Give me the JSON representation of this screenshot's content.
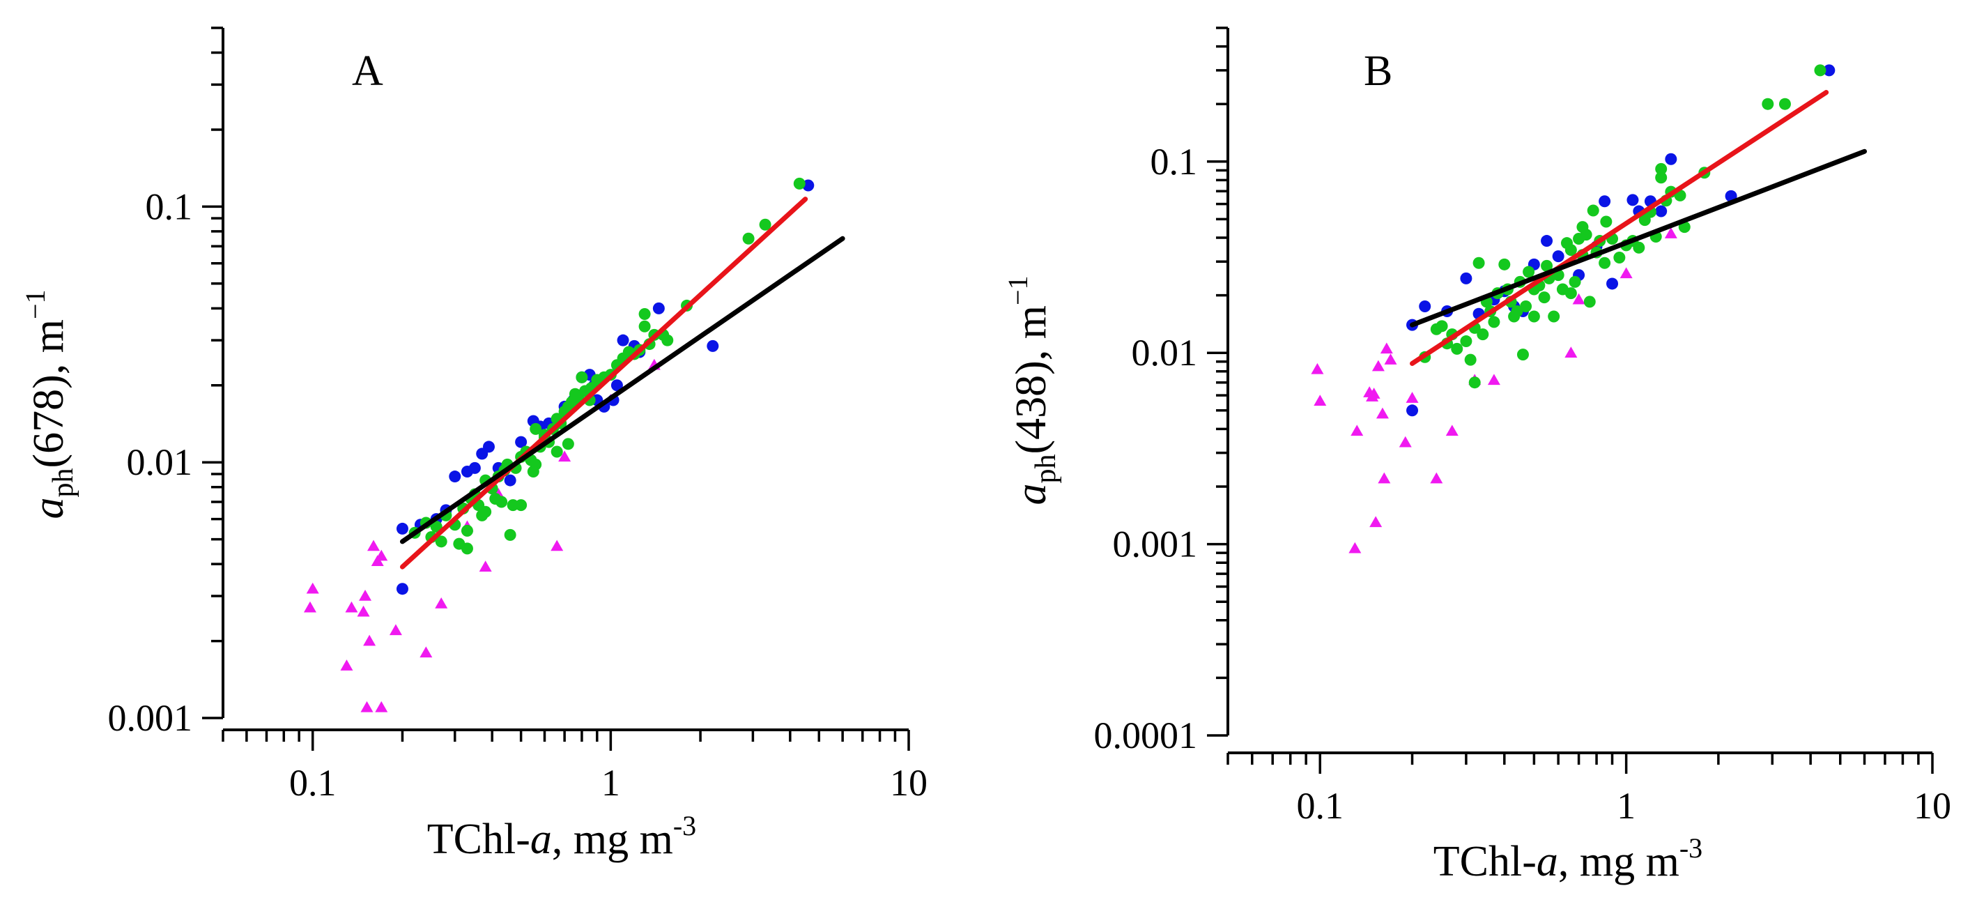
{
  "chart_data": [
    {
      "type": "scatter",
      "panel_label": "A",
      "xlabel": {
        "base": "TChl-",
        "italic": "a",
        "unit": ", mg m",
        "exp": "-3"
      },
      "ylabel": {
        "italic": "a",
        "sub": "ph",
        "rest": "(678), m",
        "exp": "−1"
      },
      "xscale": "log",
      "yscale": "log",
      "xlim": [
        0.05,
        10
      ],
      "ylim": [
        0.001,
        0.5
      ],
      "xticks": [
        {
          "v": 0.1,
          "label": "0.1"
        },
        {
          "v": 1,
          "label": "1"
        },
        {
          "v": 10,
          "label": "10"
        }
      ],
      "yticks": [
        {
          "v": 0.001,
          "label": "0.001"
        },
        {
          "v": 0.01,
          "label": "0.01"
        },
        {
          "v": 0.1,
          "label": "0.1"
        }
      ],
      "fit_lines": [
        {
          "color": "#e8141a",
          "x": [
            0.2,
            4.5
          ],
          "y": [
            0.0039,
            0.107
          ]
        },
        {
          "color": "#000000",
          "x": [
            0.2,
            6.0
          ],
          "y": [
            0.0049,
            0.075
          ]
        }
      ],
      "series": [
        {
          "marker": "circle",
          "color": "#0a14e6",
          "points": [
            [
              0.2,
              0.0055
            ],
            [
              0.2,
              0.0032
            ],
            [
              0.23,
              0.0057
            ],
            [
              0.26,
              0.006
            ],
            [
              0.28,
              0.0065
            ],
            [
              0.3,
              0.0088
            ],
            [
              0.33,
              0.0092
            ],
            [
              0.35,
              0.0095
            ],
            [
              0.37,
              0.0108
            ],
            [
              0.39,
              0.0115
            ],
            [
              0.42,
              0.0095
            ],
            [
              0.46,
              0.0085
            ],
            [
              0.5,
              0.012
            ],
            [
              0.55,
              0.0145
            ],
            [
              0.58,
              0.0138
            ],
            [
              0.62,
              0.0142
            ],
            [
              0.7,
              0.0165
            ],
            [
              0.75,
              0.0175
            ],
            [
              0.8,
              0.0215
            ],
            [
              0.85,
              0.022
            ],
            [
              0.88,
              0.02
            ],
            [
              0.9,
              0.0175
            ],
            [
              0.95,
              0.0165
            ],
            [
              1.02,
              0.0175
            ],
            [
              1.05,
              0.02
            ],
            [
              1.1,
              0.03
            ],
            [
              1.2,
              0.0285
            ],
            [
              1.25,
              0.027
            ],
            [
              1.45,
              0.04
            ],
            [
              2.2,
              0.0285
            ],
            [
              4.6,
              0.121
            ]
          ]
        },
        {
          "marker": "triangle",
          "color": "#f019f0",
          "points": [
            [
              0.1,
              0.0032
            ],
            [
              0.098,
              0.0027
            ],
            [
              0.13,
              0.0016
            ],
            [
              0.135,
              0.0027
            ],
            [
              0.148,
              0.0026
            ],
            [
              0.15,
              0.003
            ],
            [
              0.152,
              0.0011
            ],
            [
              0.155,
              0.002
            ],
            [
              0.16,
              0.0047
            ],
            [
              0.165,
              0.0041
            ],
            [
              0.17,
              0.0043
            ],
            [
              0.17,
              0.0011
            ],
            [
              0.19,
              0.0022
            ],
            [
              0.24,
              0.0018
            ],
            [
              0.27,
              0.0028
            ],
            [
              0.33,
              0.0056
            ],
            [
              0.38,
              0.0039
            ],
            [
              0.42,
              0.0075
            ],
            [
              0.66,
              0.0047
            ],
            [
              0.7,
              0.0105
            ],
            [
              1.0,
              0.0175
            ],
            [
              1.4,
              0.024
            ]
          ]
        },
        {
          "marker": "circle",
          "color": "#14c81e",
          "points": [
            [
              0.22,
              0.0053
            ],
            [
              0.24,
              0.0058
            ],
            [
              0.25,
              0.0051
            ],
            [
              0.26,
              0.0056
            ],
            [
              0.27,
              0.0049
            ],
            [
              0.28,
              0.0062
            ],
            [
              0.3,
              0.0057
            ],
            [
              0.31,
              0.0048
            ],
            [
              0.32,
              0.0066
            ],
            [
              0.33,
              0.0054
            ],
            [
              0.33,
              0.0046
            ],
            [
              0.34,
              0.0072
            ],
            [
              0.35,
              0.0075
            ],
            [
              0.36,
              0.0068
            ],
            [
              0.37,
              0.0062
            ],
            [
              0.38,
              0.0064
            ],
            [
              0.38,
              0.0085
            ],
            [
              0.4,
              0.0079
            ],
            [
              0.41,
              0.0072
            ],
            [
              0.42,
              0.0088
            ],
            [
              0.43,
              0.007
            ],
            [
              0.44,
              0.0093
            ],
            [
              0.45,
              0.0098
            ],
            [
              0.46,
              0.0052
            ],
            [
              0.47,
              0.0068
            ],
            [
              0.48,
              0.0095
            ],
            [
              0.5,
              0.0068
            ],
            [
              0.5,
              0.0105
            ],
            [
              0.52,
              0.011
            ],
            [
              0.54,
              0.0102
            ],
            [
              0.56,
              0.0098
            ],
            [
              0.58,
              0.0115
            ],
            [
              0.6,
              0.0125
            ],
            [
              0.62,
              0.012
            ],
            [
              0.64,
              0.0135
            ],
            [
              0.66,
              0.0148
            ],
            [
              0.68,
              0.0142
            ],
            [
              0.7,
              0.0158
            ],
            [
              0.72,
              0.0165
            ],
            [
              0.74,
              0.0172
            ],
            [
              0.76,
              0.0185
            ],
            [
              0.78,
              0.0178
            ],
            [
              0.8,
              0.0215
            ],
            [
              0.82,
              0.019
            ],
            [
              0.86,
              0.0195
            ],
            [
              0.9,
              0.021
            ],
            [
              0.95,
              0.0215
            ],
            [
              1.0,
              0.022
            ],
            [
              1.05,
              0.024
            ],
            [
              1.1,
              0.0255
            ],
            [
              1.15,
              0.027
            ],
            [
              1.2,
              0.0265
            ],
            [
              1.25,
              0.0275
            ],
            [
              1.3,
              0.034
            ],
            [
              1.3,
              0.038
            ],
            [
              1.35,
              0.029
            ],
            [
              1.4,
              0.0315
            ],
            [
              1.5,
              0.0315
            ],
            [
              1.55,
              0.03
            ],
            [
              1.8,
              0.041
            ],
            [
              2.9,
              0.075
            ],
            [
              3.3,
              0.085
            ],
            [
              4.3,
              0.123
            ],
            [
              0.56,
              0.0135
            ],
            [
              0.6,
              0.0128
            ],
            [
              0.66,
              0.011
            ],
            [
              0.72,
              0.0118
            ],
            [
              0.85,
              0.0175
            ],
            [
              0.55,
              0.0092
            ]
          ]
        }
      ]
    },
    {
      "type": "scatter",
      "panel_label": "B",
      "xlabel": {
        "base": "TChl-",
        "italic": "a",
        "unit": ", mg m",
        "exp": "-3"
      },
      "ylabel": {
        "italic": "a",
        "sub": "ph",
        "rest": "(438), m",
        "exp": "−1"
      },
      "xscale": "log",
      "yscale": "log",
      "xlim": [
        0.05,
        10
      ],
      "ylim": [
        0.0001,
        0.5
      ],
      "xticks": [
        {
          "v": 0.1,
          "label": "0.1"
        },
        {
          "v": 1,
          "label": "1"
        },
        {
          "v": 10,
          "label": "10"
        }
      ],
      "yticks": [
        {
          "v": 0.0001,
          "label": "0.0001"
        },
        {
          "v": 0.001,
          "label": "0.001"
        },
        {
          "v": 0.01,
          "label": "0.01"
        },
        {
          "v": 0.1,
          "label": "0.1"
        }
      ],
      "fit_lines": [
        {
          "color": "#e8141a",
          "x": [
            0.2,
            4.5
          ],
          "y": [
            0.0088,
            0.23
          ]
        },
        {
          "color": "#000000",
          "x": [
            0.2,
            6.0
          ],
          "y": [
            0.014,
            0.113
          ]
        }
      ],
      "series": [
        {
          "marker": "circle",
          "color": "#0a14e6",
          "points": [
            [
              0.2,
              0.014
            ],
            [
              0.22,
              0.0175
            ],
            [
              0.2,
              0.005
            ],
            [
              0.26,
              0.0165
            ],
            [
              0.3,
              0.0245
            ],
            [
              0.33,
              0.016
            ],
            [
              0.37,
              0.019
            ],
            [
              0.4,
              0.021
            ],
            [
              0.43,
              0.0175
            ],
            [
              0.46,
              0.0165
            ],
            [
              0.5,
              0.029
            ],
            [
              0.55,
              0.0385
            ],
            [
              0.6,
              0.032
            ],
            [
              0.7,
              0.0255
            ],
            [
              0.8,
              0.036
            ],
            [
              0.85,
              0.062
            ],
            [
              0.9,
              0.023
            ],
            [
              1.05,
              0.063
            ],
            [
              1.1,
              0.055
            ],
            [
              1.15,
              0.052
            ],
            [
              1.2,
              0.062
            ],
            [
              1.3,
              0.055
            ],
            [
              1.4,
              0.103
            ],
            [
              2.2,
              0.066
            ],
            [
              4.6,
              0.3
            ]
          ]
        },
        {
          "marker": "triangle",
          "color": "#f019f0",
          "points": [
            [
              0.098,
              0.0082
            ],
            [
              0.1,
              0.0056
            ],
            [
              0.13,
              0.00095
            ],
            [
              0.132,
              0.0039
            ],
            [
              0.145,
              0.0062
            ],
            [
              0.148,
              0.0059
            ],
            [
              0.15,
              0.0061
            ],
            [
              0.152,
              0.0013
            ],
            [
              0.155,
              0.0085
            ],
            [
              0.16,
              0.0048
            ],
            [
              0.162,
              0.0022
            ],
            [
              0.165,
              0.0105
            ],
            [
              0.17,
              0.0092
            ],
            [
              0.19,
              0.0034
            ],
            [
              0.2,
              0.0058
            ],
            [
              0.24,
              0.0022
            ],
            [
              0.27,
              0.0039
            ],
            [
              0.32,
              0.0072
            ],
            [
              0.37,
              0.0072
            ],
            [
              0.66,
              0.01
            ],
            [
              0.7,
              0.019
            ],
            [
              1.0,
              0.026
            ],
            [
              1.4,
              0.042
            ]
          ]
        },
        {
          "marker": "circle",
          "color": "#14c81e",
          "points": [
            [
              0.22,
              0.0095
            ],
            [
              0.24,
              0.0133
            ],
            [
              0.25,
              0.0138
            ],
            [
              0.26,
              0.0112
            ],
            [
              0.27,
              0.0125
            ],
            [
              0.28,
              0.0105
            ],
            [
              0.3,
              0.0115
            ],
            [
              0.31,
              0.0092
            ],
            [
              0.32,
              0.007
            ],
            [
              0.32,
              0.0135
            ],
            [
              0.33,
              0.0295
            ],
            [
              0.34,
              0.0125
            ],
            [
              0.35,
              0.0185
            ],
            [
              0.36,
              0.0165
            ],
            [
              0.37,
              0.0145
            ],
            [
              0.38,
              0.0205
            ],
            [
              0.4,
              0.029
            ],
            [
              0.41,
              0.0215
            ],
            [
              0.42,
              0.0185
            ],
            [
              0.43,
              0.0155
            ],
            [
              0.44,
              0.0165
            ],
            [
              0.45,
              0.0235
            ],
            [
              0.46,
              0.0098
            ],
            [
              0.47,
              0.0175
            ],
            [
              0.48,
              0.0265
            ],
            [
              0.5,
              0.0155
            ],
            [
              0.5,
              0.0215
            ],
            [
              0.52,
              0.0225
            ],
            [
              0.54,
              0.0195
            ],
            [
              0.56,
              0.0245
            ],
            [
              0.58,
              0.0155
            ],
            [
              0.6,
              0.0255
            ],
            [
              0.62,
              0.0215
            ],
            [
              0.64,
              0.0375
            ],
            [
              0.66,
              0.0345
            ],
            [
              0.68,
              0.0235
            ],
            [
              0.7,
              0.0395
            ],
            [
              0.72,
              0.0455
            ],
            [
              0.74,
              0.0415
            ],
            [
              0.76,
              0.0185
            ],
            [
              0.78,
              0.0555
            ],
            [
              0.8,
              0.0335
            ],
            [
              0.82,
              0.0385
            ],
            [
              0.86,
              0.0485
            ],
            [
              0.9,
              0.0395
            ],
            [
              0.95,
              0.0315
            ],
            [
              1.0,
              0.0365
            ],
            [
              1.05,
              0.0385
            ],
            [
              1.1,
              0.0355
            ],
            [
              1.15,
              0.0495
            ],
            [
              1.2,
              0.0545
            ],
            [
              1.25,
              0.0405
            ],
            [
              1.3,
              0.0825
            ],
            [
              1.3,
              0.0915
            ],
            [
              1.35,
              0.0625
            ],
            [
              1.4,
              0.0695
            ],
            [
              1.5,
              0.0665
            ],
            [
              1.55,
              0.0455
            ],
            [
              1.8,
              0.0875
            ],
            [
              2.9,
              0.2
            ],
            [
              3.3,
              0.2
            ],
            [
              4.3,
              0.3
            ],
            [
              0.55,
              0.0285
            ],
            [
              0.66,
              0.0205
            ],
            [
              0.72,
              0.0325
            ],
            [
              0.85,
              0.0295
            ]
          ]
        }
      ]
    }
  ]
}
